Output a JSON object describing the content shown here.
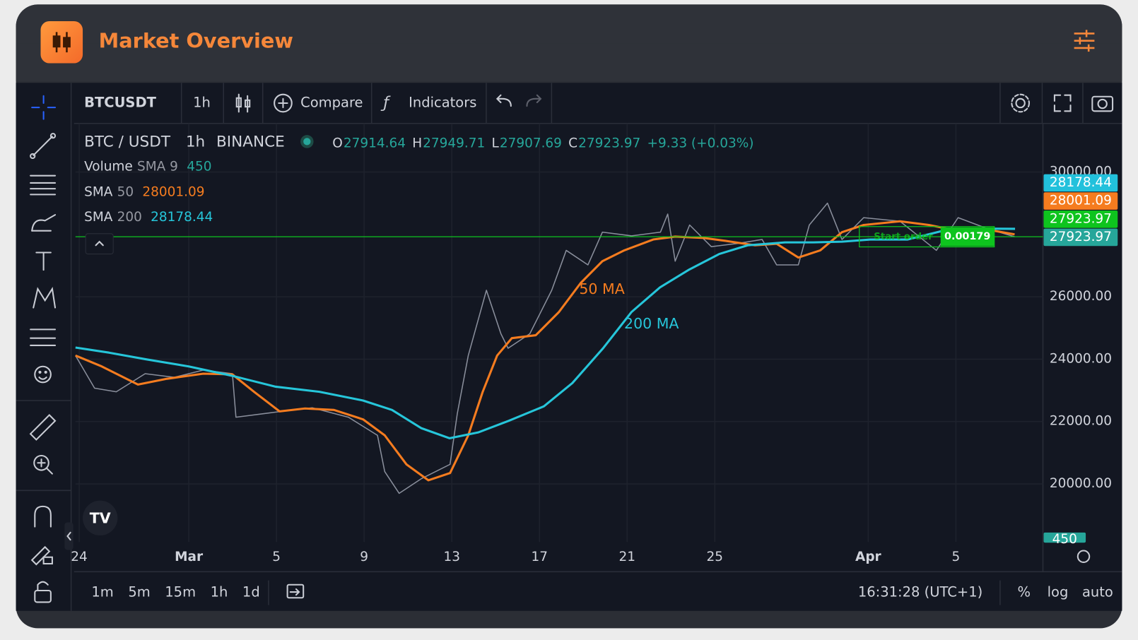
{
  "header": {
    "title": "Market Overview"
  },
  "toolbar": {
    "symbol": "BTCUSDT",
    "interval": "1h",
    "compare": "Compare",
    "indicators": "Indicators"
  },
  "legend": {
    "pair": "BTC / USDT",
    "interval": "1h",
    "exchange": "BINANCE",
    "ohlc": [
      {
        "key": "O",
        "value": "27914.64"
      },
      {
        "key": "H",
        "value": "27949.71"
      },
      {
        "key": "L",
        "value": "27907.69"
      },
      {
        "key": "C",
        "value": "27923.97"
      }
    ],
    "change": "+9.33 (+0.03%)",
    "studies": [
      {
        "name": "Volume",
        "param": "SMA 9",
        "value": "450"
      },
      {
        "name": "SMA",
        "param": "50",
        "value": "28001.09"
      },
      {
        "name": "SMA",
        "param": "200",
        "value": "28178.44"
      }
    ]
  },
  "chart_data": {
    "type": "line",
    "xlim": [
      -0.17,
      43.97
    ],
    "xticks": [
      {
        "value": 0,
        "label": "24"
      },
      {
        "value": 5,
        "label": "Mar"
      },
      {
        "value": 9,
        "label": "5"
      },
      {
        "value": 13,
        "label": "9"
      },
      {
        "value": 17,
        "label": "13"
      },
      {
        "value": 21,
        "label": "17"
      },
      {
        "value": 25,
        "label": "21"
      },
      {
        "value": 29,
        "label": "25"
      },
      {
        "value": 36,
        "label": "Apr"
      },
      {
        "value": 40,
        "label": "5"
      }
    ],
    "ylim": [
      18140,
      31440
    ],
    "yticks": [
      {
        "value": 20000,
        "label": "20000.00"
      },
      {
        "value": 22000,
        "label": "22000.00"
      },
      {
        "value": 24000,
        "label": "24000.00"
      },
      {
        "value": 26000,
        "label": "26000.00"
      },
      {
        "value": 30000,
        "label": "30000.00"
      }
    ],
    "grid": true,
    "series": [
      {
        "name": "BTC / USDT",
        "color": "#8a8f9c",
        "x": [
          -0.17,
          0.7,
          1.69,
          3.01,
          4.34,
          5.66,
          6.99,
          7.15,
          8.97,
          10.63,
          12.28,
          13.61,
          13.94,
          14.6,
          15.6,
          16.92,
          17.25,
          17.75,
          18.58,
          19.24,
          19.57,
          20.56,
          21.56,
          22.22,
          23.21,
          23.87,
          25.2,
          26.52,
          26.85,
          27.19,
          27.85,
          28.84,
          30.17,
          31.16,
          31.82,
          32.81,
          33.31,
          34.14,
          34.8,
          35.79,
          37.45,
          39.11,
          40.1,
          41.42,
          42.68
        ],
        "values": [
          24116,
          23070,
          22953,
          23535,
          23419,
          23651,
          23535,
          22140,
          22302,
          22442,
          22140,
          21558,
          20395,
          19698,
          20163,
          20628,
          22256,
          24116,
          26209,
          24814,
          24349,
          24814,
          26209,
          27488,
          27023,
          28070,
          27953,
          28070,
          28651,
          27140,
          28302,
          27605,
          27721,
          27837,
          27023,
          27023,
          28302,
          29000,
          27837,
          28535,
          28419,
          27488,
          28535,
          28186,
          27923.97
        ]
      },
      {
        "name": "SMA 50",
        "color": "#f57c1f",
        "x": [
          -0.17,
          1.03,
          2.68,
          4.01,
          5.66,
          6.99,
          7.98,
          9.14,
          10.3,
          11.62,
          12.95,
          13.94,
          14.93,
          15.93,
          16.92,
          17.75,
          18.41,
          19.07,
          19.74,
          20.83,
          21.89,
          22.88,
          23.87,
          24.87,
          26.19,
          27.19,
          28.51,
          29.5,
          30.83,
          31.82,
          32.81,
          33.81,
          34.8,
          35.79,
          37.45,
          38.77,
          40.1,
          41.75,
          42.68
        ],
        "values": [
          24116,
          23767,
          23186,
          23372,
          23535,
          23512,
          22953,
          22326,
          22419,
          22372,
          22070,
          21558,
          20628,
          20116,
          20349,
          21558,
          22953,
          24116,
          24674,
          24767,
          25512,
          26442,
          27140,
          27488,
          27837,
          27930,
          27884,
          27791,
          27651,
          27698,
          27256,
          27488,
          28070,
          28302,
          28419,
          28302,
          28116,
          28116,
          28001.09
        ]
      },
      {
        "name": "SMA 200",
        "color": "#26c6da",
        "x": [
          -0.17,
          1.36,
          3.01,
          5.0,
          6.99,
          8.97,
          10.96,
          12.95,
          14.27,
          15.6,
          16.9,
          18.2,
          19.6,
          21.2,
          22.5,
          23.9,
          25.2,
          26.5,
          27.8,
          29.2,
          30.5,
          32.2,
          33.5,
          34.8,
          36.1,
          37.8,
          39.4,
          40.8,
          42.7
        ],
        "values": [
          24372,
          24209,
          24000,
          23767,
          23465,
          23116,
          22953,
          22674,
          22372,
          21791,
          21465,
          21651,
          22023,
          22488,
          23233,
          24349,
          25512,
          26302,
          26860,
          27372,
          27651,
          27744,
          27744,
          27767,
          27837,
          27837,
          28116,
          28186,
          28178.44
        ]
      }
    ],
    "annotations": [
      {
        "text": "50 MA",
        "color": "#f57c1f"
      },
      {
        "text": "200 MA",
        "color": "#26c6da"
      }
    ],
    "price_labels": [
      {
        "value": 28178.44,
        "color": "#22c1dc"
      },
      {
        "value": 28001.09,
        "color": "#f57c1f"
      },
      {
        "value": 27923.97,
        "color": "#0ec41e"
      },
      {
        "value": 27923.97,
        "color": "#26a69a"
      },
      {
        "value": 450,
        "color": "#26a69a"
      }
    ],
    "order": {
      "label": "Start order",
      "qty": "0.00179"
    }
  },
  "bottom_bar": {
    "timeframes": [
      "1m",
      "5m",
      "15m",
      "1h",
      "1d"
    ],
    "clock": "16:31:28 (UTC+1)",
    "options": [
      "%",
      "log",
      "auto"
    ]
  }
}
